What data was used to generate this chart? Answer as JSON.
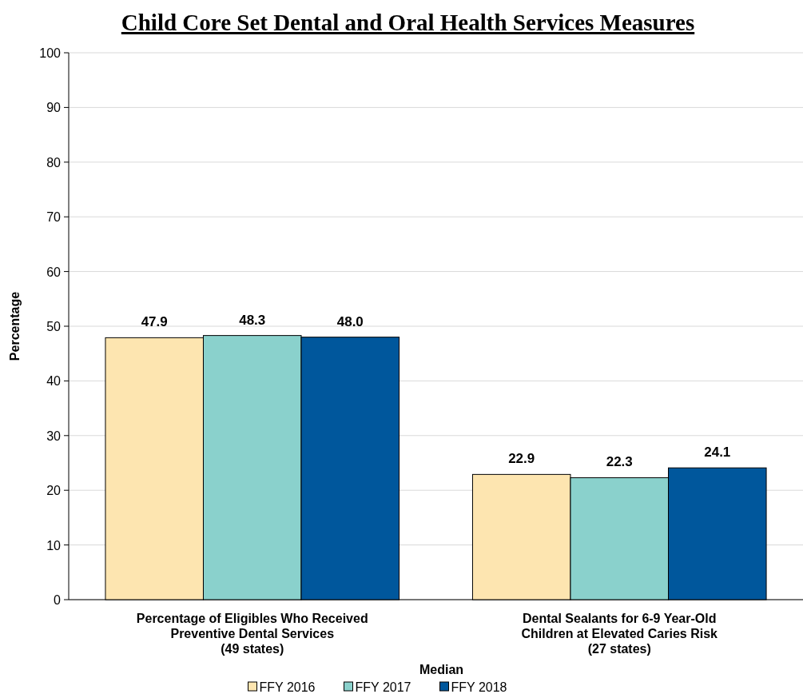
{
  "chart_data": {
    "type": "bar",
    "title": "Child Core Set Dental and Oral Health Services Measures",
    "ylabel": "Percentage",
    "legend_title": "Median",
    "categories": [
      "Percentage of Eligibles Who Received\nPreventive Dental Services\n(49 states)",
      "Dental Sealants for 6-9 Year-Old\nChildren at Elevated Caries Risk\n(27 states)"
    ],
    "series": [
      {
        "name": "FFY 2016",
        "color": "#fde5b0",
        "values": [
          47.9,
          22.9
        ],
        "value_labels": [
          "47.9",
          "22.9"
        ]
      },
      {
        "name": "FFY 2017",
        "color": "#8ad1cc",
        "values": [
          48.3,
          22.3
        ],
        "value_labels": [
          "48.3",
          "22.3"
        ]
      },
      {
        "name": "FFY 2018",
        "color": "#00579c",
        "values": [
          48.0,
          24.1
        ],
        "value_labels": [
          "48.0",
          "24.1"
        ]
      }
    ],
    "ylim": [
      0,
      100
    ],
    "yticks": [
      0,
      10,
      20,
      30,
      40,
      50,
      60,
      70,
      80,
      90,
      100
    ],
    "grid": "y",
    "legend": "bottom"
  }
}
